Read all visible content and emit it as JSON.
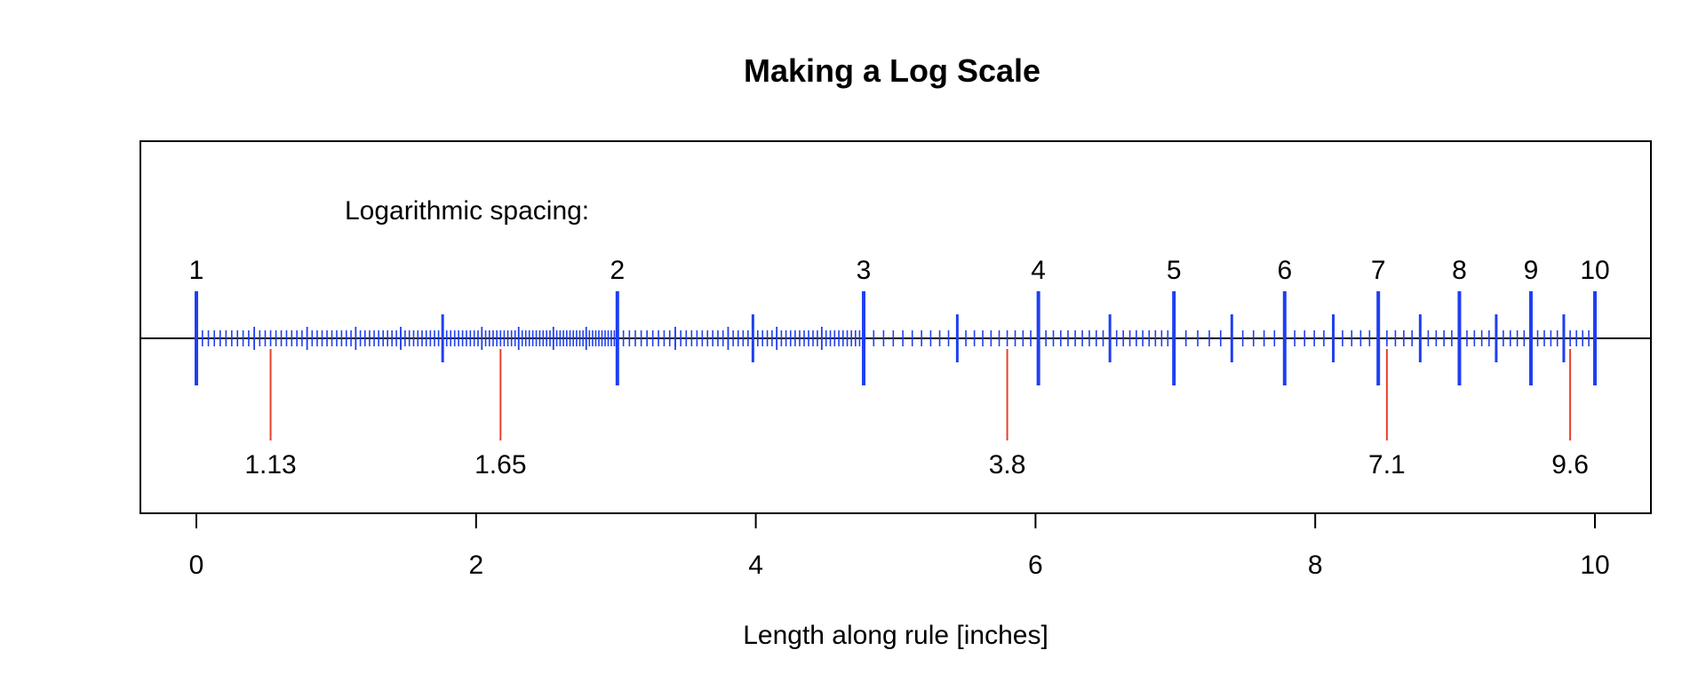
{
  "chart_data": {
    "type": "scatter",
    "title": "Making a Log Scale",
    "xlabel": "Length along rule [inches]",
    "ylabel": "",
    "xlim": [
      0,
      10
    ],
    "x_ticks": [
      0,
      2,
      4,
      6,
      8,
      10
    ],
    "grid": false,
    "annotation": "Logarithmic spacing:",
    "scale": {
      "min": 1,
      "max": 10,
      "major_labels": [
        "1",
        "2",
        "3",
        "4",
        "5",
        "6",
        "7",
        "8",
        "9",
        "10"
      ],
      "tick_color": "#1f3ff2"
    },
    "marked_values": {
      "color": "#e8412c",
      "labels": [
        "1.13",
        "1.65",
        "3.8",
        "7.1",
        "9.6"
      ]
    }
  }
}
